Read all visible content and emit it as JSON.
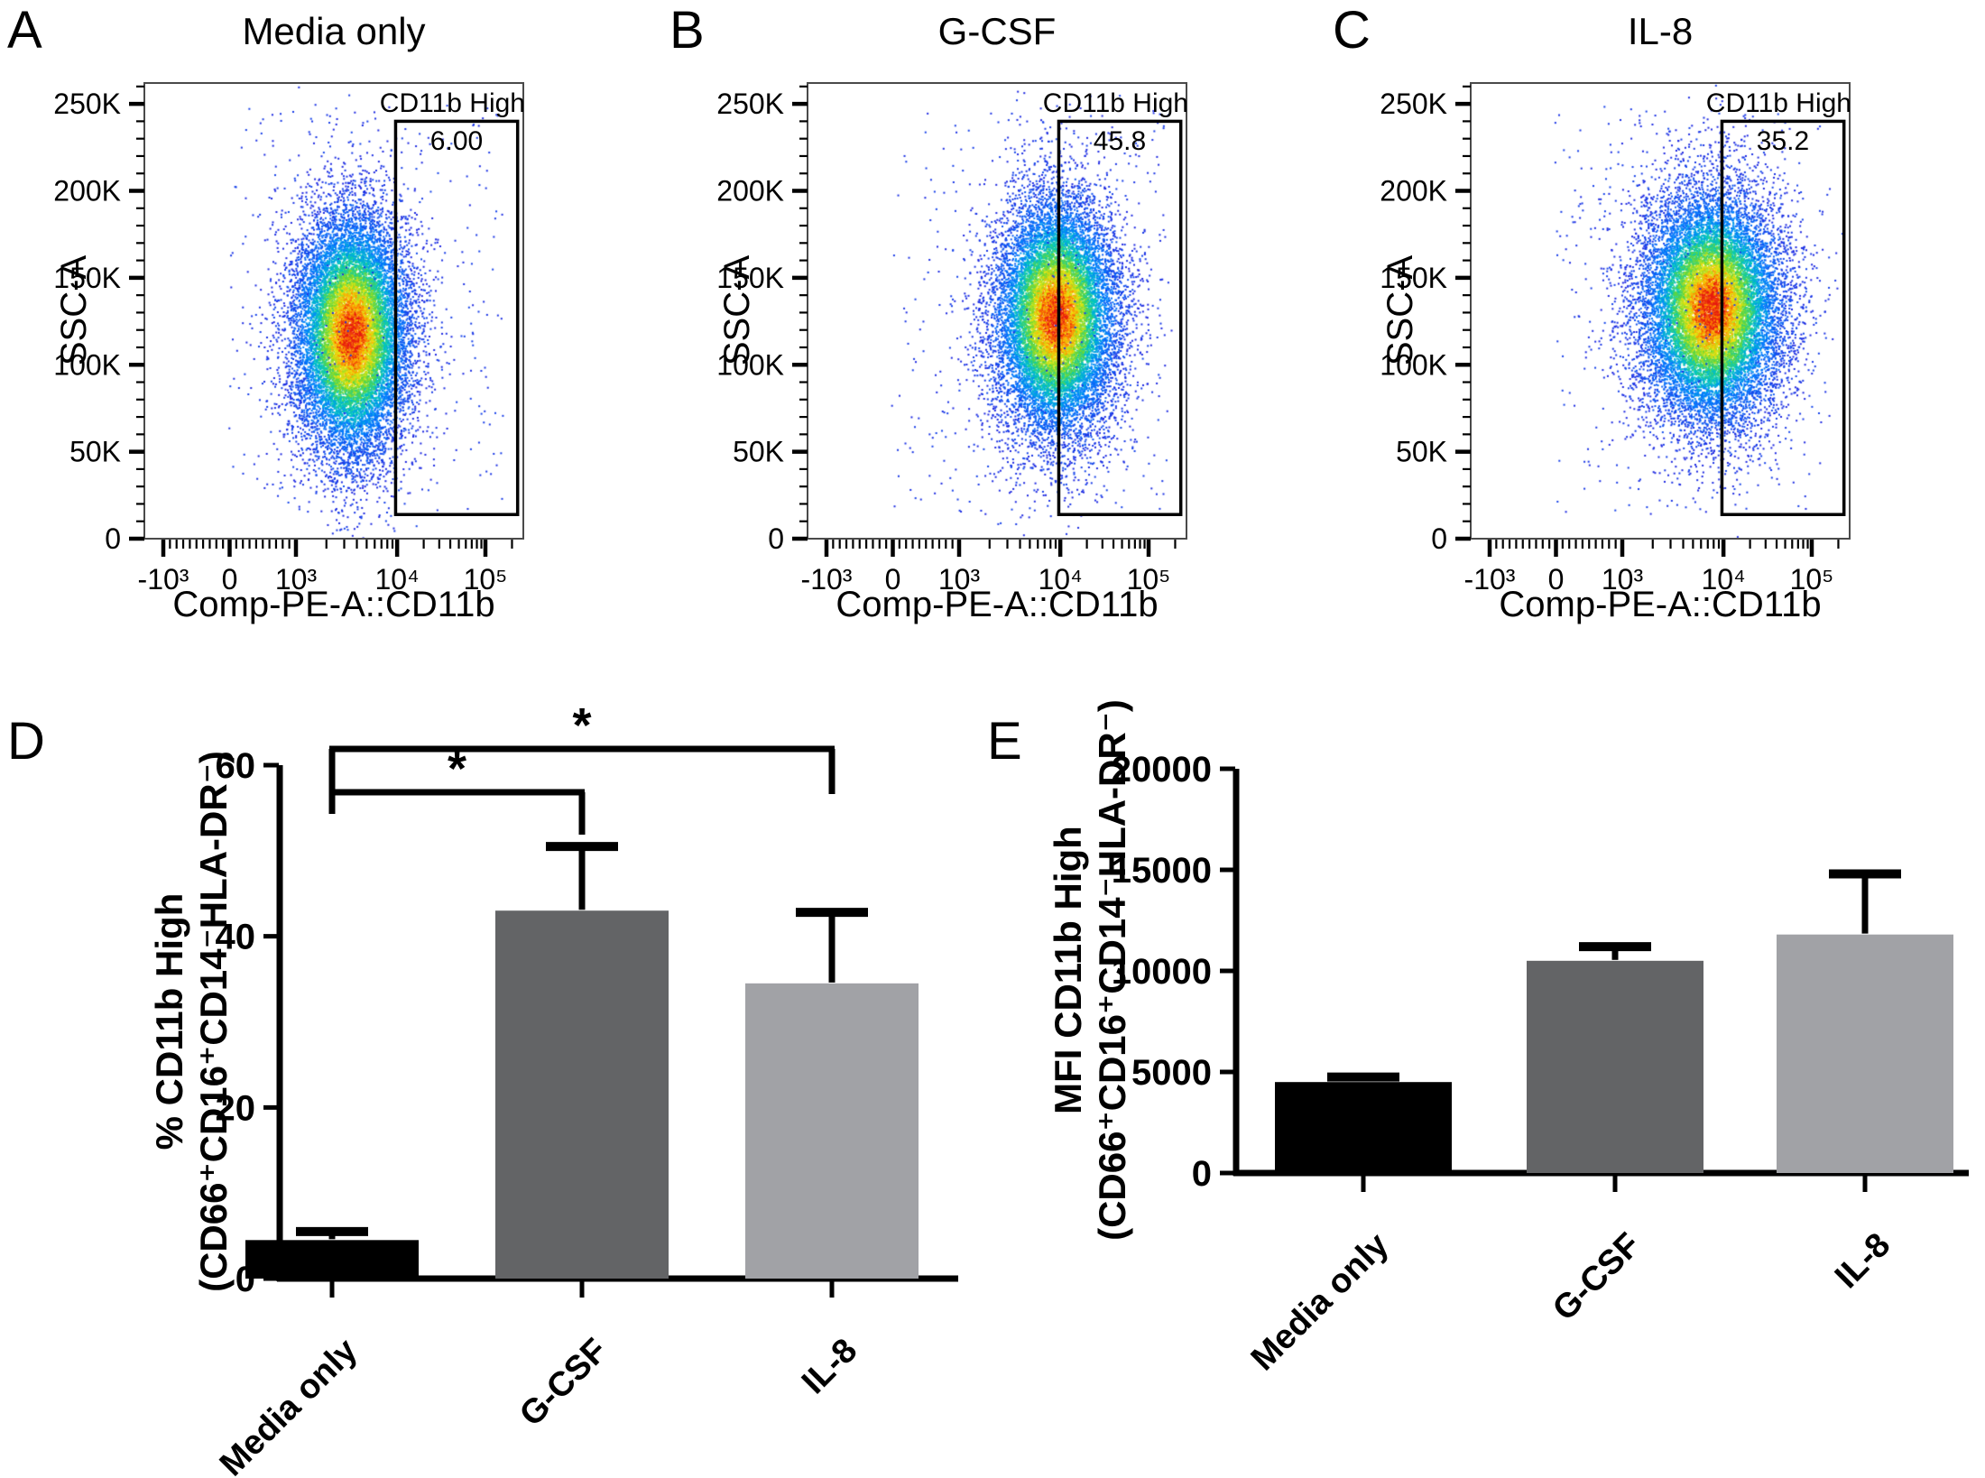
{
  "panels": {
    "a": {
      "letter": "A"
    },
    "b": {
      "letter": "B"
    },
    "c": {
      "letter": "C"
    },
    "d": {
      "letter": "D"
    },
    "e": {
      "letter": "E"
    }
  },
  "flow_common": {
    "xlabel": "Comp-PE-A::CD11b",
    "ylabel": "SSC-A",
    "x_ticks": [
      "-10³",
      "0",
      "10³",
      "10⁴",
      "10⁵"
    ],
    "y_ticks": [
      "0",
      "50K",
      "100K",
      "150K",
      "200K",
      "250K"
    ],
    "y_max": 262000
  },
  "chart_data": [
    {
      "id": "A",
      "type": "scatter",
      "title": "Media only",
      "xlabel": "Comp-PE-A::CD11b",
      "ylabel": "SSC-A",
      "x_ticks": [
        "-10³",
        "0",
        "10³",
        "10⁴",
        "10⁵"
      ],
      "y_ticks": [
        "0",
        "50K",
        "100K",
        "150K",
        "200K",
        "250K"
      ],
      "y_range": [
        0,
        262000
      ],
      "gate": {
        "label": "CD11b High",
        "value": "6.00",
        "percent": 6.0
      },
      "population": {
        "center_x_frac": 0.545,
        "sigma_x_frac": 0.078,
        "center_y": 118000,
        "sigma_y": 36000,
        "n_points": 14000,
        "seed": 101
      }
    },
    {
      "id": "B",
      "type": "scatter",
      "title": "G-CSF",
      "xlabel": "Comp-PE-A::CD11b",
      "ylabel": "SSC-A",
      "x_ticks": [
        "-10³",
        "0",
        "10³",
        "10⁴",
        "10⁵"
      ],
      "y_ticks": [
        "0",
        "50K",
        "100K",
        "150K",
        "200K",
        "250K"
      ],
      "y_range": [
        0,
        262000
      ],
      "gate": {
        "label": "CD11b High",
        "value": "45.8",
        "percent": 45.8
      },
      "population": {
        "center_x_frac": 0.655,
        "sigma_x_frac": 0.082,
        "center_y": 128000,
        "sigma_y": 35000,
        "n_points": 14000,
        "seed": 202
      }
    },
    {
      "id": "C",
      "type": "scatter",
      "title": "IL-8",
      "xlabel": "Comp-PE-A::CD11b",
      "ylabel": "SSC-A",
      "x_ticks": [
        "-10³",
        "0",
        "10³",
        "10⁴",
        "10⁵"
      ],
      "y_ticks": [
        "0",
        "50K",
        "100K",
        "150K",
        "200K",
        "250K"
      ],
      "y_range": [
        0,
        262000
      ],
      "gate": {
        "label": "CD11b High",
        "value": "35.2",
        "percent": 35.2
      },
      "population": {
        "center_x_frac": 0.635,
        "sigma_x_frac": 0.095,
        "center_y": 133000,
        "sigma_y": 34000,
        "n_points": 15000,
        "seed": 303
      }
    },
    {
      "id": "D",
      "type": "bar",
      "categories": [
        "Media only",
        "G-CSF",
        "IL-8"
      ],
      "values": [
        4.5,
        43,
        34.5
      ],
      "errors": [
        1.0,
        7.5,
        8.3
      ],
      "bar_colors": [
        "#000000",
        "#636466",
        "#a1a2a6"
      ],
      "ylabel_line1": "% CD11b High",
      "ylabel_line2": "(CD66⁺CD16⁺CD14⁻HLA-DR⁻)",
      "yticks": [
        0,
        20,
        40,
        60
      ],
      "ylim": [
        0,
        60
      ],
      "significance": [
        {
          "between": [
            "Media only",
            "G-CSF"
          ],
          "label": "*"
        },
        {
          "between": [
            "Media only",
            "IL-8"
          ],
          "label": "*"
        }
      ]
    },
    {
      "id": "E",
      "type": "bar",
      "categories": [
        "Media only",
        "G-CSF",
        "IL-8"
      ],
      "values": [
        4500,
        10500,
        11800
      ],
      "errors": [
        250,
        700,
        3000
      ],
      "bar_colors": [
        "#000000",
        "#636466",
        "#a1a2a6"
      ],
      "ylabel_line1": "MFI CD11b High",
      "ylabel_line2": "(CD66⁺CD16⁺CD14⁻HLA-DR⁻)",
      "yticks": [
        0,
        5000,
        10000,
        15000,
        20000
      ],
      "ylim": [
        0,
        20000
      ],
      "significance": []
    }
  ]
}
